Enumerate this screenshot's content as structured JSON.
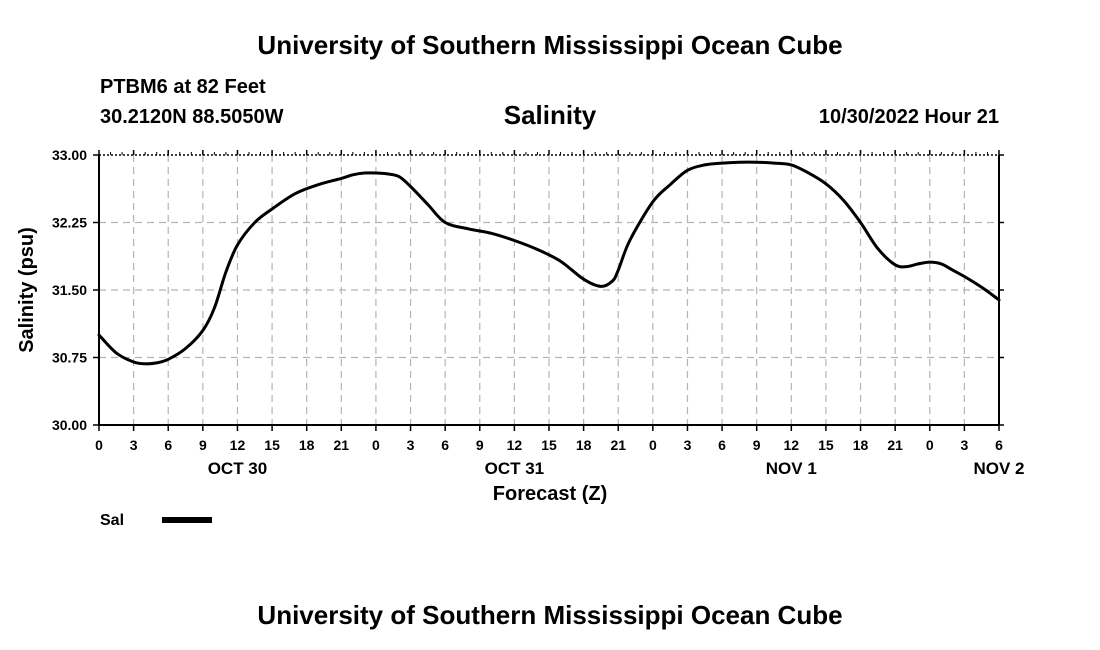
{
  "header": {
    "title": "University of Southern Mississippi Ocean Cube",
    "station": "PTBM6 at 82 Feet",
    "coords": "30.2120N  88.5050W",
    "variable": "Salinity",
    "datetime": "10/30/2022 Hour 21"
  },
  "footer": {
    "title": "University of Southern Mississippi Ocean Cube"
  },
  "chart_data": {
    "type": "line",
    "title": "Salinity",
    "xlabel": "Forecast (Z)",
    "ylabel": "Salinity (psu)",
    "ylim": [
      30.0,
      33.0
    ],
    "y_ticks": [
      "30.00",
      "30.75",
      "31.50",
      "32.25",
      "33.00"
    ],
    "y_tick_values": [
      30.0,
      30.75,
      31.5,
      32.25,
      33.0
    ],
    "x_range_hours": [
      0,
      78
    ],
    "x_tick_labels": [
      "0",
      "3",
      "6",
      "9",
      "12",
      "15",
      "18",
      "21",
      "0",
      "3",
      "6",
      "9",
      "12",
      "15",
      "18",
      "21",
      "0",
      "3",
      "6",
      "9",
      "12",
      "15",
      "18",
      "21",
      "0",
      "3",
      "6"
    ],
    "day_labels": [
      {
        "label": "OCT 30",
        "hour": 12
      },
      {
        "label": "OCT 31",
        "hour": 36
      },
      {
        "label": "NOV 1",
        "hour": 60
      },
      {
        "label": "NOV 2",
        "hour": 78
      }
    ],
    "grid": true,
    "legend": {
      "position": "bottom-left",
      "label": "Sal"
    },
    "series": [
      {
        "name": "Sal",
        "color": "#000000",
        "x": [
          0,
          1.5,
          3,
          4,
          5,
          6,
          7.5,
          9,
          10,
          11,
          12,
          13.5,
          15,
          17,
          19,
          21,
          22,
          23,
          24,
          25,
          26,
          27,
          28.5,
          30,
          32,
          34,
          36,
          38,
          40,
          42,
          43.5,
          44.5,
          45,
          46,
          48,
          49.5,
          51,
          52.5,
          54,
          55.5,
          57,
          58.5,
          60,
          61.5,
          63,
          64.5,
          66,
          67.5,
          69,
          70,
          71,
          72,
          73,
          74,
          75,
          76.5,
          78
        ],
        "values": [
          31.0,
          30.8,
          30.7,
          30.68,
          30.69,
          30.73,
          30.85,
          31.05,
          31.3,
          31.7,
          32.0,
          32.25,
          32.4,
          32.57,
          32.67,
          32.74,
          32.78,
          32.8,
          32.8,
          32.79,
          32.76,
          32.65,
          32.45,
          32.25,
          32.18,
          32.13,
          32.05,
          31.95,
          31.82,
          31.62,
          31.54,
          31.6,
          31.72,
          32.05,
          32.48,
          32.67,
          32.83,
          32.89,
          32.91,
          32.92,
          32.92,
          32.91,
          32.89,
          32.8,
          32.68,
          32.5,
          32.25,
          31.96,
          31.78,
          31.76,
          31.79,
          31.81,
          31.79,
          31.72,
          31.65,
          31.53,
          31.39
        ]
      }
    ]
  }
}
